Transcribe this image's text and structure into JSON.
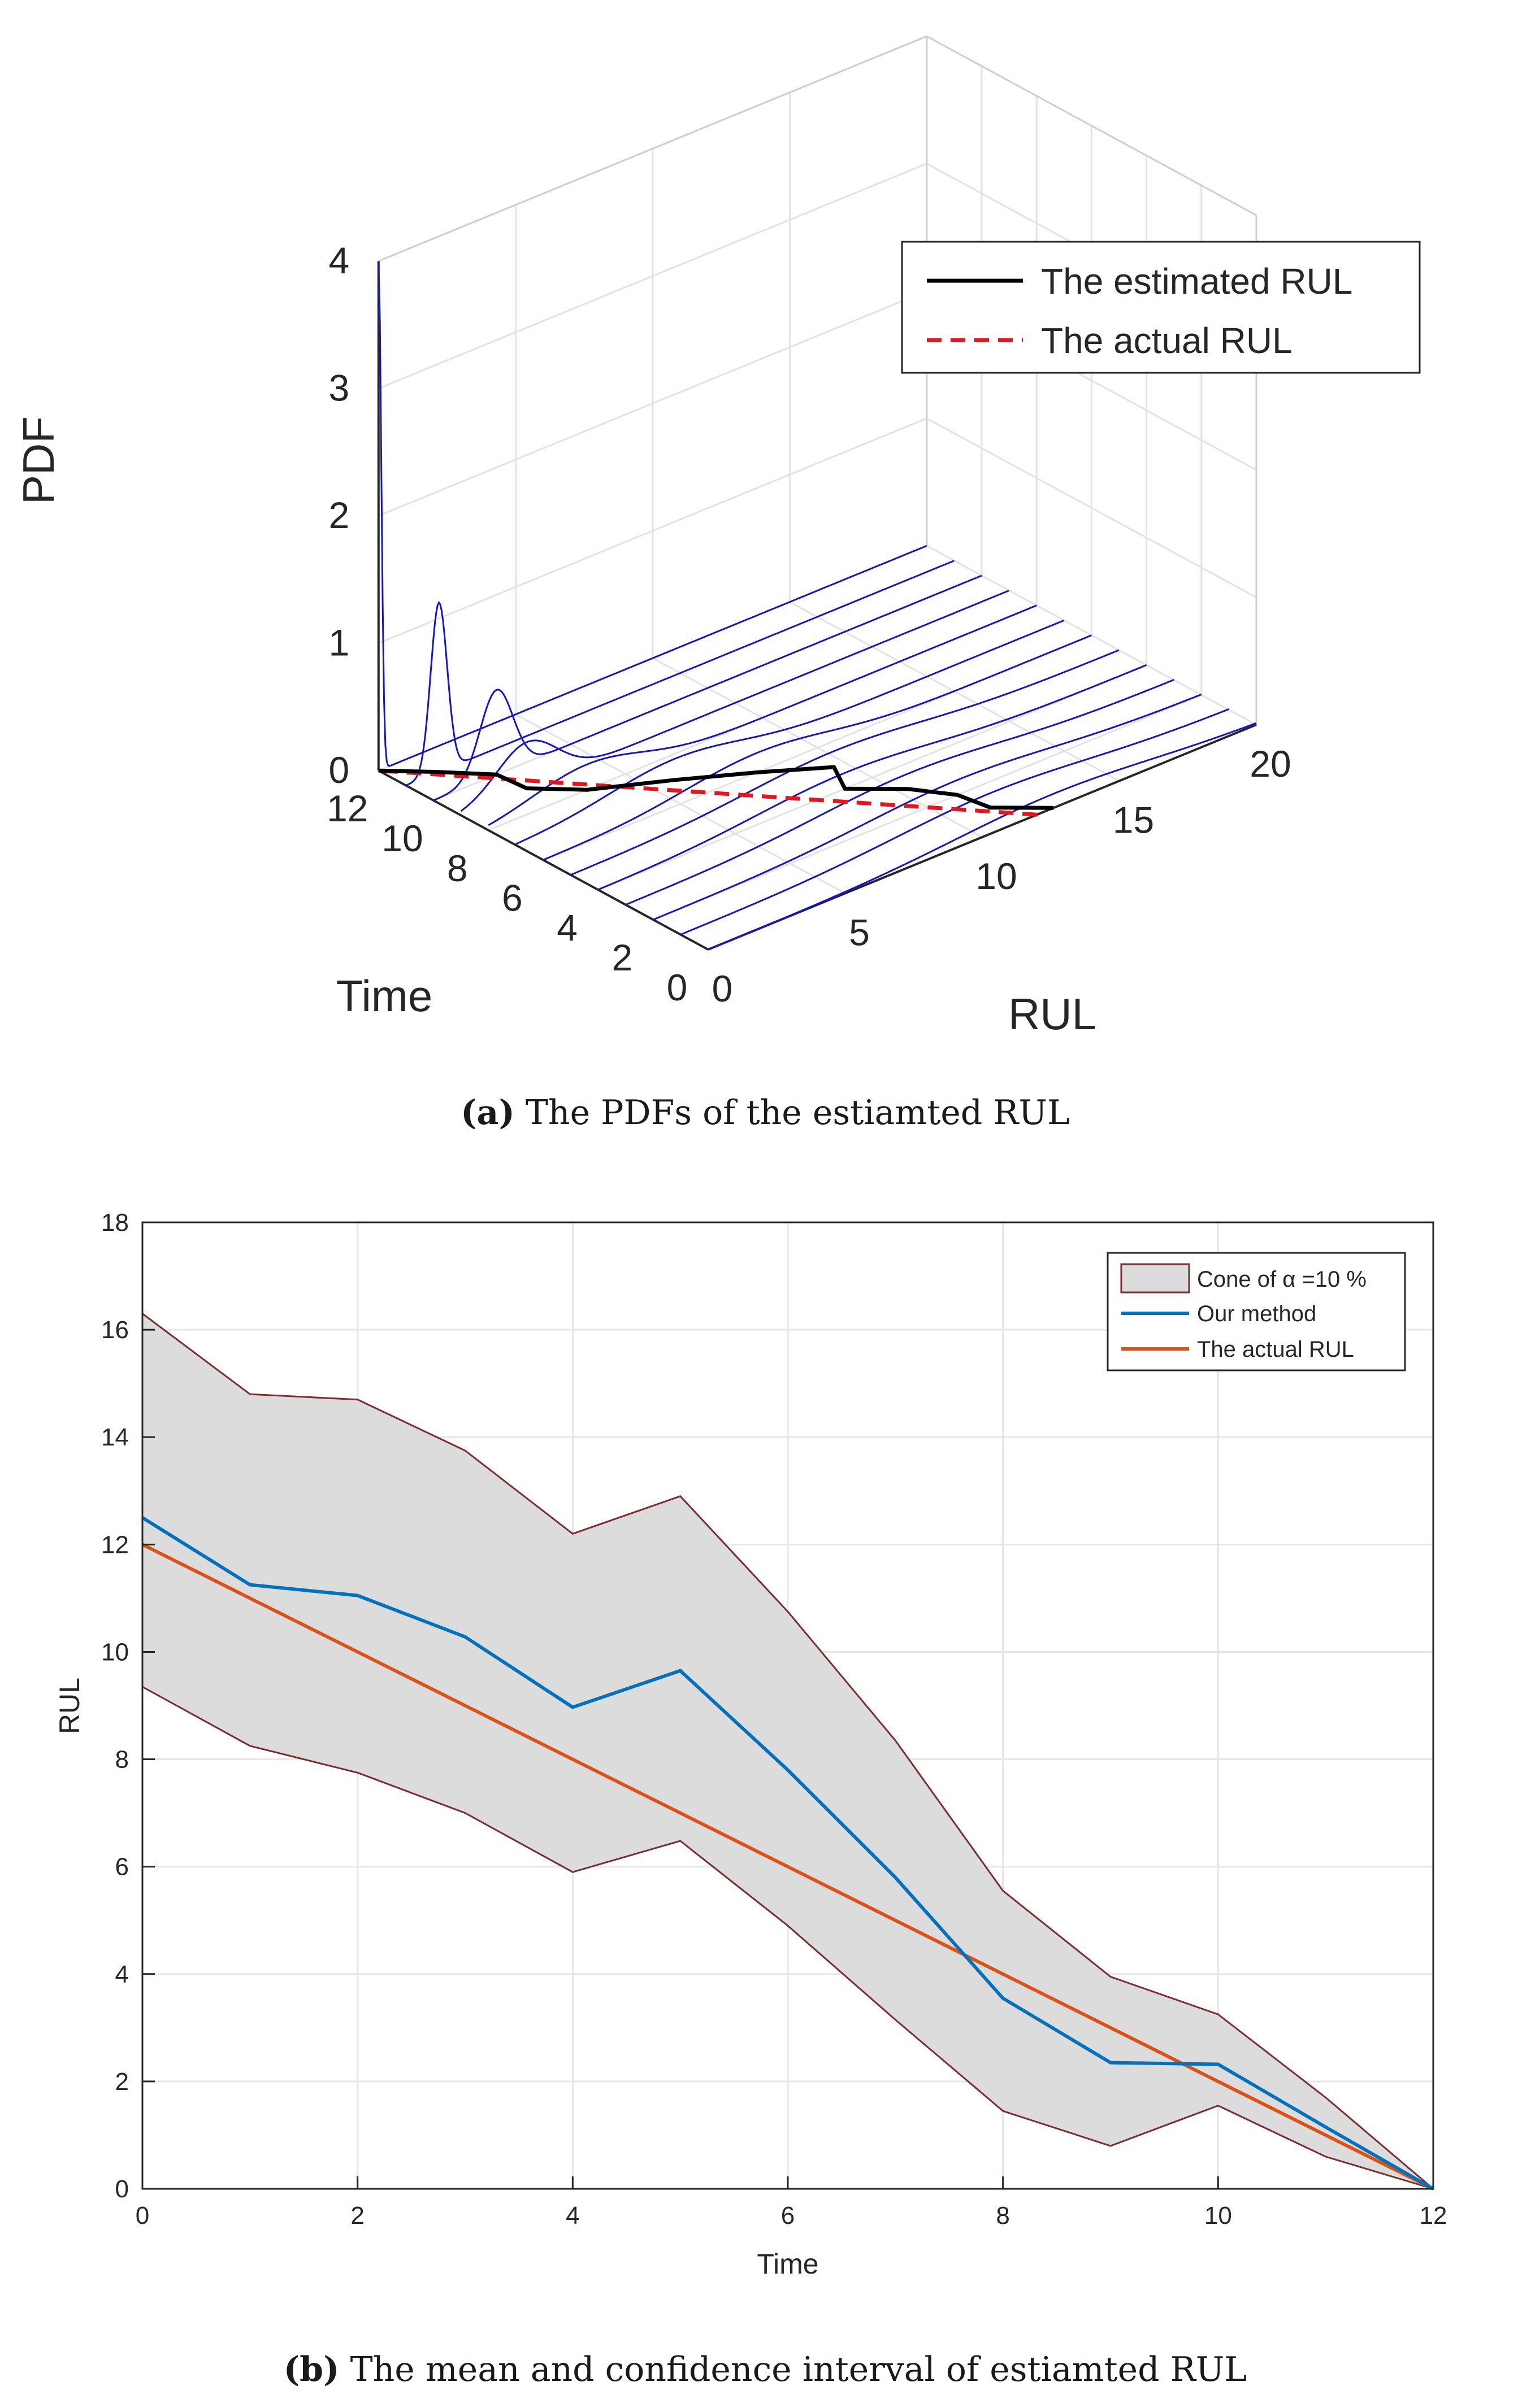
{
  "chart_data": [
    {
      "id": "a",
      "type": "line3d",
      "zlabel": "PDF",
      "xlabel": "Time",
      "ylabel": "RUL",
      "time_ticks": [
        "0",
        "2",
        "4",
        "6",
        "8",
        "10",
        "12"
      ],
      "rul_ticks": [
        "0",
        "5",
        "10",
        "15",
        "20"
      ],
      "pdf_ticks": [
        "0",
        "1",
        "2",
        "3",
        "4"
      ],
      "time_range": [
        0,
        12
      ],
      "rul_range": [
        0,
        20
      ],
      "pdf_range": [
        0,
        4
      ],
      "grid": true,
      "legend_position": "top-right",
      "legend": [
        {
          "label": "The estimated RUL",
          "color": "#000000",
          "style": "solid"
        },
        {
          "label": "The actual RUL",
          "color": "#e8141b",
          "style": "dashed"
        }
      ],
      "pdf_curve_color": "#1515c8",
      "pdf_curves": [
        {
          "time": 12,
          "mean": 0.0,
          "sd": 0.1,
          "scale": 1.0
        },
        {
          "time": 11,
          "mean": 1.2,
          "sd": 0.3,
          "scale": 1.0
        },
        {
          "time": 10,
          "mean": 2.3,
          "sd": 0.6,
          "scale": 1.0
        },
        {
          "time": 9,
          "mean": 2.4,
          "sd": 1.1,
          "scale": 1.0
        },
        {
          "time": 8,
          "mean": 3.6,
          "sd": 2.0,
          "scale": 1.0
        },
        {
          "time": 7,
          "mean": 5.8,
          "sd": 2.4,
          "scale": 1.0
        },
        {
          "time": 6,
          "mean": 7.8,
          "sd": 2.6,
          "scale": 1.0
        },
        {
          "time": 5,
          "mean": 9.6,
          "sd": 3.2,
          "scale": 1.0
        },
        {
          "time": 4,
          "mean": 9.0,
          "sd": 3.2,
          "scale": 1.0
        },
        {
          "time": 3,
          "mean": 10.3,
          "sd": 3.3,
          "scale": 1.0
        },
        {
          "time": 2,
          "mean": 11.1,
          "sd": 3.4,
          "scale": 1.0
        },
        {
          "time": 1,
          "mean": 11.3,
          "sd": 3.5,
          "scale": 1.0
        },
        {
          "time": 0,
          "mean": 12.6,
          "sd": 3.6,
          "scale": 1.0
        }
      ],
      "estimated_rul": [
        {
          "time": 0,
          "rul": 12.6
        },
        {
          "time": 1,
          "rul": 11.3
        },
        {
          "time": 2,
          "rul": 11.1
        },
        {
          "time": 3,
          "rul": 10.3
        },
        {
          "time": 4,
          "rul": 9.0
        },
        {
          "time": 5,
          "rul": 9.6
        },
        {
          "time": 6,
          "rul": 7.8
        },
        {
          "time": 7,
          "rul": 5.8
        },
        {
          "time": 8,
          "rul": 3.6
        },
        {
          "time": 9,
          "rul": 2.4
        },
        {
          "time": 10,
          "rul": 2.3
        },
        {
          "time": 11,
          "rul": 1.2
        },
        {
          "time": 12,
          "rul": 0.0
        }
      ],
      "actual_rul": [
        {
          "time": 0,
          "rul": 12
        },
        {
          "time": 12,
          "rul": 0
        }
      ],
      "caption_label": "(a)",
      "caption_text": " The PDFs of the estiamted RUL"
    },
    {
      "id": "b",
      "type": "line",
      "xlabel": "Time",
      "ylabel": "RUL",
      "xlim": [
        0,
        12
      ],
      "ylim": [
        0,
        18
      ],
      "x_ticks": [
        0,
        2,
        4,
        6,
        8,
        10,
        12
      ],
      "y_ticks": [
        0,
        2,
        4,
        6,
        8,
        10,
        12,
        14,
        16,
        18
      ],
      "grid": true,
      "legend_position": "top-right",
      "x": [
        0,
        1,
        2,
        3,
        4,
        5,
        6,
        7,
        8,
        9,
        10,
        11,
        12
      ],
      "series": [
        {
          "name": "Our method",
          "color": "#0072bd",
          "values": [
            12.5,
            11.25,
            11.05,
            10.28,
            8.97,
            9.65,
            7.8,
            5.8,
            3.55,
            2.35,
            2.32,
            1.15,
            0.0
          ]
        },
        {
          "name": "The actual RUL",
          "color": "#d95319",
          "values": [
            12,
            11,
            10,
            9,
            8,
            7,
            6,
            5,
            4,
            3,
            2,
            1,
            0
          ]
        }
      ],
      "cone": {
        "name": "Cone of α =10 %",
        "fill": "#dcdcdc",
        "edge": "#7b2e2e",
        "upper": [
          16.3,
          14.8,
          14.7,
          13.75,
          12.2,
          12.9,
          10.75,
          8.35,
          5.55,
          3.95,
          3.25,
          1.7,
          0.0
        ],
        "lower": [
          9.35,
          8.25,
          7.75,
          7.0,
          5.9,
          6.48,
          4.9,
          3.15,
          1.45,
          0.8,
          1.55,
          0.6,
          0.0
        ]
      },
      "caption_label": "(b)",
      "caption_text": " The mean and confidence interval of estiamted RUL"
    }
  ]
}
